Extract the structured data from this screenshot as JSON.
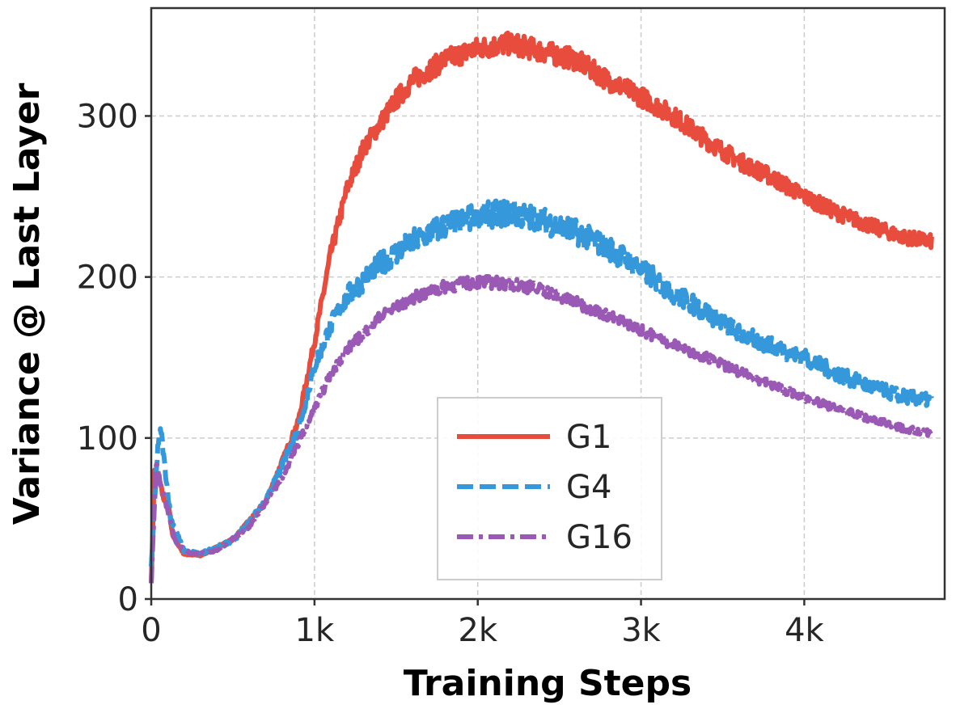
{
  "chart_data": {
    "type": "line",
    "title": "",
    "xlabel": "Training Steps",
    "ylabel": "Variance @ Last Layer",
    "xlim": [
      0,
      4860
    ],
    "ylim": [
      0,
      367
    ],
    "xticks": [
      0,
      1000,
      2000,
      3000,
      4000
    ],
    "xtick_labels": [
      "0",
      "1k",
      "2k",
      "3k",
      "4k"
    ],
    "yticks": [
      0,
      100,
      200,
      300
    ],
    "ytick_labels": [
      "0",
      "100",
      "200",
      "300"
    ],
    "grid": true,
    "legend_position": "lower-center",
    "series": [
      {
        "name": "G1",
        "color": "#e74c3c",
        "style": "solid",
        "x": [
          0,
          20,
          50,
          80,
          100,
          130,
          200,
          300,
          500,
          700,
          900,
          1000,
          1100,
          1200,
          1300,
          1400,
          1500,
          1600,
          1800,
          2000,
          2200,
          2400,
          2600,
          2800,
          3000,
          3200,
          3400,
          3600,
          3800,
          4000,
          4200,
          4400,
          4600,
          4780
        ],
        "y": [
          10,
          80,
          75,
          60,
          62,
          40,
          28,
          27,
          37,
          60,
          110,
          160,
          215,
          255,
          280,
          295,
          310,
          322,
          335,
          342,
          345,
          340,
          335,
          322,
          312,
          300,
          285,
          272,
          262,
          250,
          240,
          232,
          225,
          222
        ]
      },
      {
        "name": "G4",
        "color": "#3498db",
        "style": "dashed",
        "x": [
          0,
          40,
          60,
          80,
          120,
          200,
          300,
          500,
          700,
          900,
          1000,
          1100,
          1200,
          1400,
          1600,
          1800,
          2000,
          2200,
          2400,
          2600,
          2800,
          3000,
          3200,
          3400,
          3600,
          3800,
          4000,
          4200,
          4400,
          4600,
          4780
        ],
        "y": [
          20,
          95,
          105,
          85,
          50,
          30,
          28,
          36,
          60,
          105,
          145,
          170,
          188,
          208,
          222,
          232,
          238,
          240,
          235,
          228,
          218,
          205,
          190,
          178,
          165,
          157,
          150,
          140,
          132,
          126,
          123
        ]
      },
      {
        "name": "G16",
        "color": "#9b59b6",
        "style": "dashdot",
        "x": [
          0,
          30,
          60,
          100,
          150,
          250,
          400,
          600,
          800,
          1000,
          1100,
          1200,
          1400,
          1600,
          1800,
          2000,
          2200,
          2400,
          2600,
          2800,
          3000,
          3200,
          3400,
          3600,
          3800,
          4000,
          4200,
          4400,
          4600,
          4780
        ],
        "y": [
          10,
          85,
          70,
          55,
          35,
          28,
          30,
          45,
          75,
          118,
          140,
          155,
          175,
          187,
          194,
          197,
          196,
          192,
          184,
          176,
          167,
          158,
          150,
          141,
          133,
          125,
          118,
          112,
          106,
          103
        ]
      }
    ]
  }
}
